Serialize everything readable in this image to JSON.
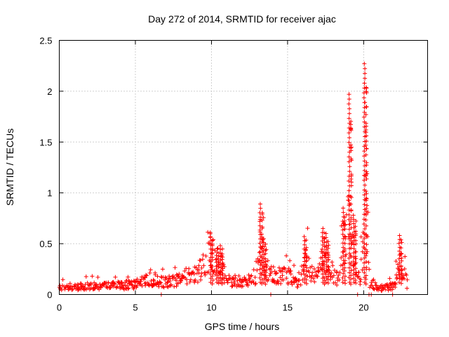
{
  "chart_data": {
    "type": "scatter",
    "title": "Day 272 of 2014, SRMTID for receiver ajac",
    "xlabel": "GPS time / hours",
    "ylabel": "SRMTID / TECUs",
    "xlim": [
      0,
      24.2
    ],
    "ylim": [
      0,
      2.5
    ],
    "x_ticks": [
      0,
      5,
      10,
      15,
      20
    ],
    "x_tick_labels": [
      "0",
      "5",
      "10",
      "15",
      "20"
    ],
    "y_ticks": [
      0,
      0.5,
      1,
      1.5,
      2,
      2.5
    ],
    "y_tick_labels": [
      "0",
      "0.5",
      "1",
      "1.5",
      "2",
      "2.5"
    ],
    "grid": true,
    "marker": "plus",
    "marker_color": "#ff0000",
    "series": [
      {
        "name": "ajac",
        "description": "Dense per-epoch SRMTID samples from 0 to ~23 h; baseline ~0.05-0.15 TECU with episodic enhancements",
        "profile_x": [
          0,
          1,
          2,
          3,
          4,
          5,
          6,
          7,
          8,
          9,
          9.6,
          10,
          10.5,
          11,
          12,
          12.9,
          13.2,
          13.6,
          14,
          15,
          15.8,
          16.2,
          16.8,
          17.4,
          17.8,
          18.3,
          18.7,
          19.1,
          19.5,
          19.8,
          20.1,
          20.4,
          21,
          22,
          22.4,
          22.9
        ],
        "profile_y": [
          0.07,
          0.07,
          0.09,
          0.08,
          0.09,
          0.1,
          0.15,
          0.12,
          0.15,
          0.2,
          0.3,
          0.4,
          0.3,
          0.15,
          0.12,
          0.18,
          0.45,
          0.25,
          0.2,
          0.18,
          0.1,
          0.35,
          0.15,
          0.45,
          0.2,
          0.15,
          0.5,
          0.7,
          0.3,
          0.15,
          0.9,
          0.12,
          0.06,
          0.08,
          0.3,
          0.09
        ],
        "spikes": [
          {
            "x": 9.95,
            "peak": 0.61
          },
          {
            "x": 10.35,
            "peak": 0.45
          },
          {
            "x": 10.6,
            "peak": 0.48
          },
          {
            "x": 13.2,
            "peak": 0.89
          },
          {
            "x": 13.45,
            "peak": 0.55
          },
          {
            "x": 16.1,
            "peak": 0.57
          },
          {
            "x": 17.3,
            "peak": 0.65
          },
          {
            "x": 17.55,
            "peak": 0.6
          },
          {
            "x": 18.65,
            "peak": 0.85
          },
          {
            "x": 19.05,
            "peak": 1.97
          },
          {
            "x": 19.35,
            "peak": 0.78
          },
          {
            "x": 20.05,
            "peak": 2.27
          },
          {
            "x": 22.35,
            "peak": 0.58
          }
        ],
        "dropouts": [
          {
            "x": 13.9,
            "y": 0.0
          },
          {
            "x": 19.6,
            "y": 0.0
          },
          {
            "x": 20.35,
            "y": 0.0
          },
          {
            "x": 20.5,
            "y": 0.0
          },
          {
            "x": 21.9,
            "y": 0.0
          },
          {
            "x": 6.7,
            "y": 0.0
          }
        ]
      }
    ]
  }
}
